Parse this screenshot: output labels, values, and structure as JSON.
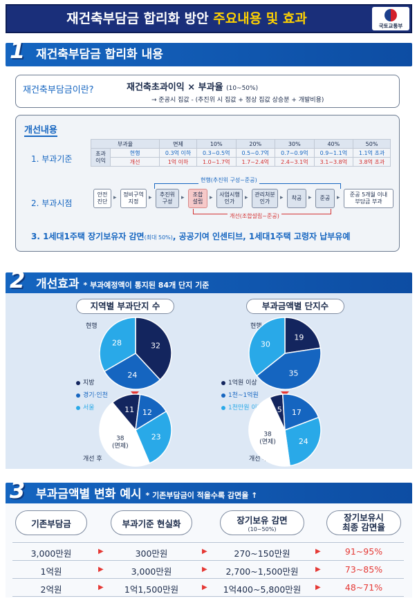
{
  "title": {
    "main": "재건축부담금 합리화 방안",
    "highlight": "주요내용 및 효과",
    "logo_text": "국토교통부"
  },
  "section1": {
    "num": "1",
    "header": "재건축부담금 합리화 내용",
    "definition_label": "재건축부담금이란?",
    "formula": "재건축초과이익 × 부과율",
    "formula_range": "(10~50%)",
    "sub_note": "→ 준공시 집값 - (추진위 시 집값 + 정상 집값 상승분 + 개발비용)",
    "improve_title": "개선내용",
    "item1": "1. 부과기준",
    "rate_table": {
      "headers": [
        "부과율",
        "면제",
        "10%",
        "20%",
        "30%",
        "40%",
        "50%"
      ],
      "rowhead": "초과\n이익",
      "current_label": "현행",
      "current": [
        "0.3억 이하",
        "0.3~0.5억",
        "0.5~0.7억",
        "0.7~0.9억",
        "0.9~1.1억",
        "1.1억 초과"
      ],
      "improved_label": "개선",
      "improved": [
        "1억 이하",
        "1.0~1.7억",
        "1.7~2.4억",
        "2.4~3.1억",
        "3.1~3.8억",
        "3.8억 초과"
      ]
    },
    "item2": "2. 부과시점",
    "current_range": "현행(추진위 구성~준공)",
    "improved_range": "개선(조합설립~준공)",
    "steps": [
      "안전\n진단",
      "정비구역\n지정",
      "추진위\n구성",
      "조합\n설립",
      "사업시행\n인가",
      "관리처분\n인가",
      "착공",
      "준공",
      "준공 5개월 이내\n부담금 부과"
    ],
    "item3": "3. 1세대1주택 장기보유자 감면",
    "item3_small": "(최대 50%)",
    "item3_rest": ", 공공기여 인센티브, 1세대1주택 고령자 납부유예"
  },
  "section2": {
    "num": "2",
    "header": "개선효과",
    "sub": "* 부과예정액이 통지된 84개 단지 기준",
    "chart_data": [
      {
        "type": "pie",
        "title": "지역별 부과단지 수",
        "panels": [
          {
            "label": "현행",
            "slices": [
              {
                "name": "지방",
                "value": 32
              },
              {
                "name": "경기·인천",
                "value": 24
              },
              {
                "name": "서울",
                "value": 28
              }
            ]
          },
          {
            "label": "개선 후",
            "slices": [
              {
                "name": "지방",
                "value": 11
              },
              {
                "name": "경기·인천",
                "value": 12
              },
              {
                "name": "서울",
                "value": 23
              },
              {
                "name": "면제",
                "value": 38
              }
            ]
          }
        ],
        "legend": [
          "지방",
          "경기·인천",
          "서울"
        ]
      },
      {
        "type": "pie",
        "title": "부과금액별 단지수",
        "panels": [
          {
            "label": "현행",
            "slices": [
              {
                "name": "1억원 이상",
                "value": 19
              },
              {
                "name": "1천~1억원",
                "value": 35
              },
              {
                "name": "1천만원 이하",
                "value": 30
              }
            ]
          },
          {
            "label": "개선 후",
            "slices": [
              {
                "name": "1억원 이상",
                "value": 5
              },
              {
                "name": "1천~1억원",
                "value": 17
              },
              {
                "name": "1천만원 이하",
                "value": 24
              },
              {
                "name": "면제",
                "value": 38
              }
            ]
          }
        ],
        "legend": [
          "1억원 이상",
          "1천~1억원",
          "1천만원 이하"
        ]
      }
    ],
    "exempt_label": "38\n(면제)",
    "colors": {
      "c1": "#13255e",
      "c2": "#1565c0",
      "c3": "#29a9e8",
      "exempt": "#ffffff"
    }
  },
  "section3": {
    "num": "3",
    "header": "부과금액별 변화 예시",
    "sub": "* 기존부담금이 적을수록 감면율 ↑",
    "col_headers": [
      "기존부담금",
      "부과기준 현실화",
      "장기보유 감면",
      "장기보유시\n최종 감면율"
    ],
    "col_sub": "(10~50%)",
    "rows": [
      [
        "3,000만원",
        "300만원",
        "270~150만원",
        "91~95%"
      ],
      [
        "1억원",
        "3,000만원",
        "2,700~1,500만원",
        "73~85%"
      ],
      [
        "2억원",
        "1억1,500만원",
        "1억400~5,800만원",
        "48~71%"
      ]
    ]
  }
}
